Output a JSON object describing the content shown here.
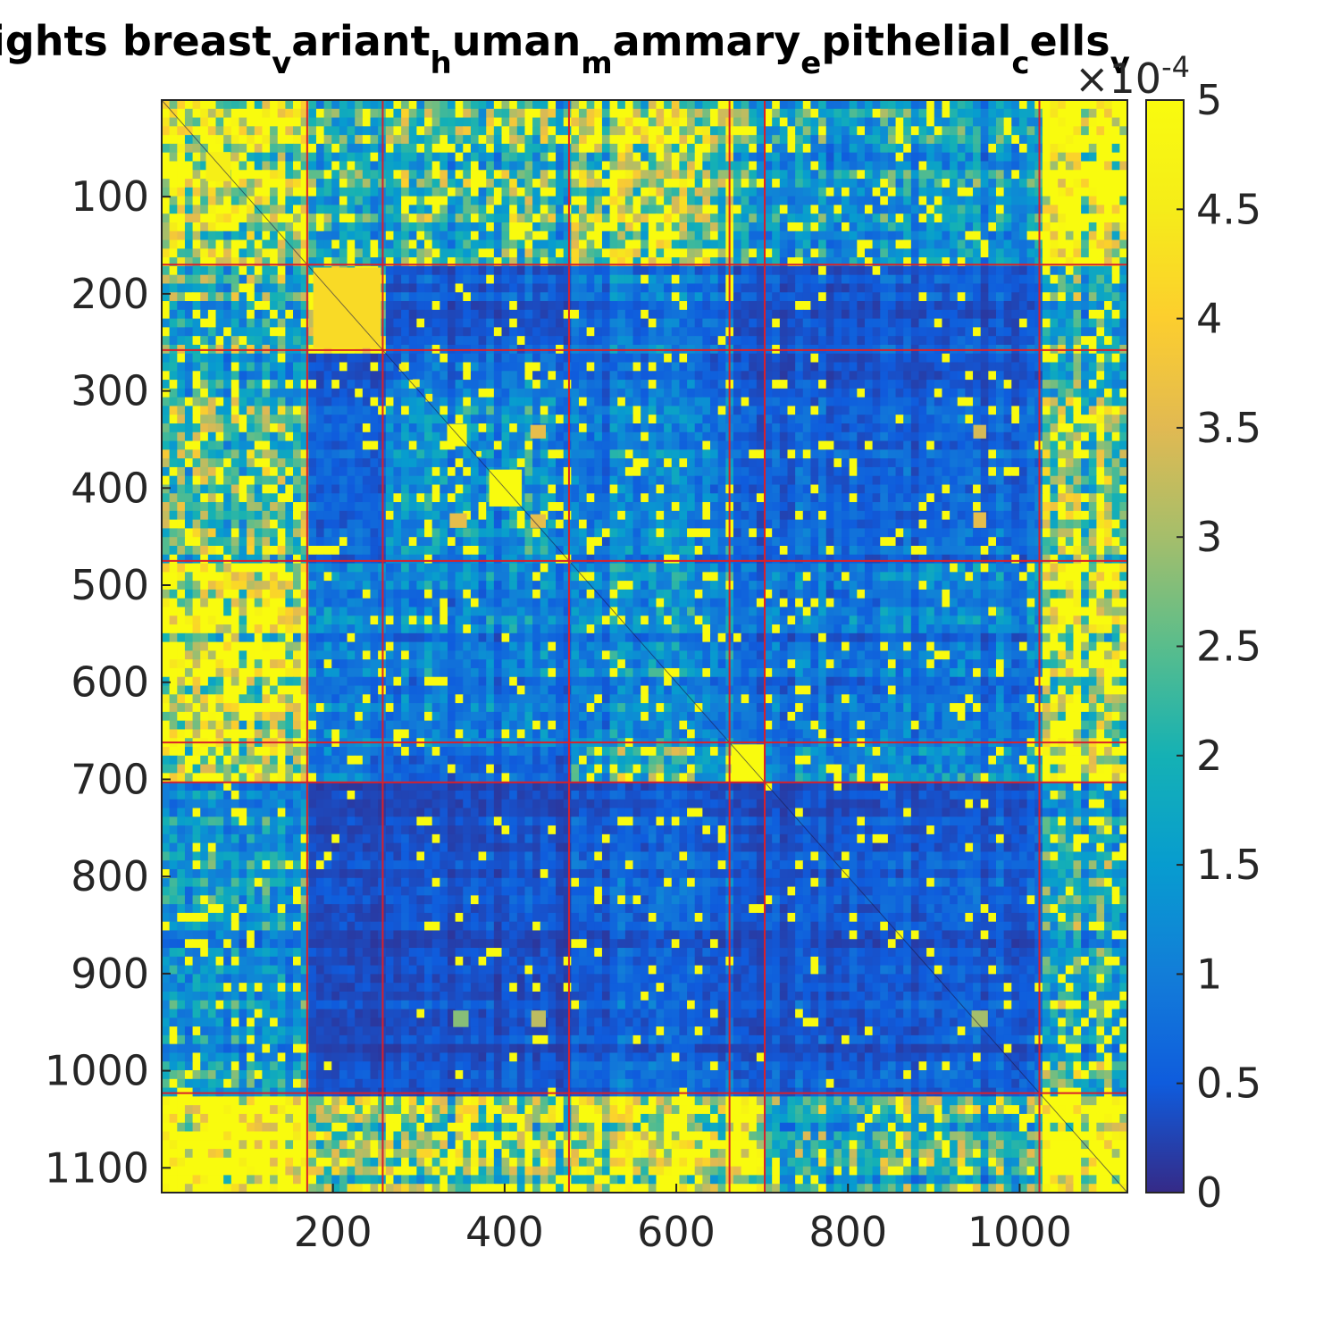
{
  "chart_data": {
    "type": "heatmap",
    "title": "Weights breast_variant_human_mammary_epithelial_cells_v",
    "title_visible_segments": [
      {
        "text": "ights breast",
        "sub": false
      },
      {
        "text": "v",
        "sub": true
      },
      {
        "text": "ariant",
        "sub": false
      },
      {
        "text": "h",
        "sub": true
      },
      {
        "text": "uman",
        "sub": false
      },
      {
        "text": "m",
        "sub": true
      },
      {
        "text": "ammary",
        "sub": false
      },
      {
        "text": "e",
        "sub": true
      },
      {
        "text": "pithelial",
        "sub": false
      },
      {
        "text": "c",
        "sub": true
      },
      {
        "text": "ells",
        "sub": false
      },
      {
        "text": "v",
        "sub": true
      }
    ],
    "matrix_size": 1125,
    "xlim": [
      1,
      1125
    ],
    "ylim": [
      1,
      1125
    ],
    "y_reversed": true,
    "x_ticks": [
      200,
      400,
      600,
      800,
      1000
    ],
    "y_ticks": [
      100,
      200,
      300,
      400,
      500,
      600,
      700,
      800,
      900,
      1000,
      1100
    ],
    "colormap": "parula",
    "colorbar": {
      "range": [
        0,
        5
      ],
      "ticks": [
        "0",
        "0.5",
        "1",
        "1.5",
        "2",
        "2.5",
        "3",
        "3.5",
        "4",
        "4.5",
        "5"
      ],
      "multiplier_base": "×10",
      "multiplier_exponent": "-4"
    },
    "block_boundaries": [
      170,
      258,
      475,
      662,
      703,
      1023
    ],
    "block_boundary_color": "#d9202a",
    "block_mean_values": [
      [
        3.2,
        1.6,
        2.0,
        3.0,
        1.6,
        1.4,
        4.6
      ],
      [
        1.8,
        3.4,
        0.5,
        0.9,
        0.4,
        0.5,
        2.0
      ],
      [
        2.0,
        0.5,
        1.2,
        1.0,
        0.5,
        0.6,
        2.6
      ],
      [
        3.4,
        0.9,
        1.0,
        1.2,
        0.7,
        0.9,
        3.2
      ],
      [
        2.8,
        0.8,
        0.6,
        1.8,
        5.0,
        1.2,
        3.8
      ],
      [
        1.3,
        0.3,
        0.4,
        0.6,
        0.4,
        0.5,
        1.8
      ],
      [
        4.6,
        2.2,
        2.6,
        3.4,
        3.8,
        1.8,
        4.6
      ]
    ],
    "highlight_blocks": [
      {
        "x": [
          664,
          703
        ],
        "y": [
          664,
          703
        ],
        "value": 5.0
      },
      {
        "x": [
          382,
          420
        ],
        "y": [
          381,
          419
        ],
        "value": 5.0
      },
      {
        "x": [
          333,
          356
        ],
        "y": [
          334,
          357
        ],
        "value": 5.0
      },
      {
        "x": [
          177,
          256
        ],
        "y": [
          173,
          256
        ],
        "value": 4.2
      },
      {
        "x": [
          52,
          81
        ],
        "y": [
          54,
          84
        ],
        "value": 4.6
      },
      {
        "x": [
          430,
          448
        ],
        "y": [
          335,
          349
        ],
        "value": 3.6
      },
      {
        "x": [
          430,
          448
        ],
        "y": [
          427,
          441
        ],
        "value": 3.6
      },
      {
        "x": [
          336,
          356
        ],
        "y": [
          426,
          441
        ],
        "value": 3.6
      },
      {
        "x": [
          946,
          961
        ],
        "y": [
          335,
          349
        ],
        "value": 3.4
      },
      {
        "x": [
          946,
          961
        ],
        "y": [
          425,
          441
        ],
        "value": 3.6
      },
      {
        "x": [
          340,
          358
        ],
        "y": [
          938,
          955
        ],
        "value": 2.8
      },
      {
        "x": [
          431,
          448
        ],
        "y": [
          938,
          955
        ],
        "value": 3.2
      },
      {
        "x": [
          944,
          963
        ],
        "y": [
          938,
          955
        ],
        "value": 3.0
      },
      {
        "x": [
          277,
          285
        ],
        "y": [
          272,
          280
        ],
        "value": 4.6
      },
      {
        "x": [
          293,
          301
        ],
        "y": [
          288,
          296
        ],
        "value": 4.6
      },
      {
        "x": [
          308,
          316
        ],
        "y": [
          303,
          311
        ],
        "value": 4.6
      },
      {
        "x": [
          367,
          373
        ],
        "y": [
          362,
          368
        ],
        "value": 4.8
      }
    ]
  }
}
